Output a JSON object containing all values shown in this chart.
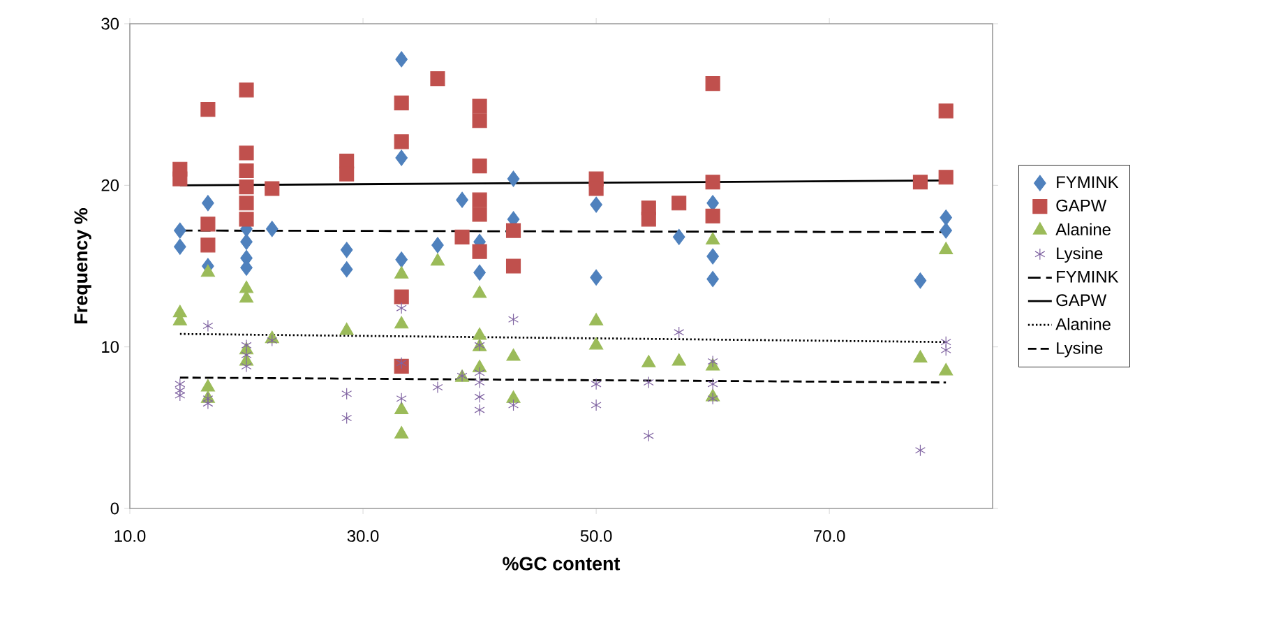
{
  "chart_data": {
    "type": "scatter",
    "xlabel": "%GC content",
    "ylabel": "Frequency %",
    "xlim": [
      10,
      84
    ],
    "ylim": [
      0,
      30
    ],
    "xticks": [
      {
        "value": 10,
        "label": "10.0"
      },
      {
        "value": 30,
        "label": "30.0"
      },
      {
        "value": 50,
        "label": "50.0"
      },
      {
        "value": 70,
        "label": "70.0"
      }
    ],
    "yticks": [
      0,
      10,
      20,
      30
    ],
    "grid": false,
    "legend": "right",
    "series": [
      {
        "name": "FYMINK",
        "marker": "diamond",
        "color": "#4f81bd",
        "x": [
          14.3,
          14.3,
          16.7,
          16.7,
          20,
          20,
          20,
          20,
          22.2,
          28.6,
          28.6,
          33.3,
          33.3,
          33.3,
          36.4,
          38.5,
          40,
          40,
          42.9,
          42.9,
          50,
          50,
          57.1,
          60,
          60,
          60,
          77.8,
          80,
          80
        ],
        "values": [
          17.2,
          16.2,
          18.9,
          15.0,
          17.3,
          16.5,
          15.5,
          14.9,
          17.3,
          16.0,
          14.8,
          27.8,
          21.7,
          15.4,
          16.3,
          19.1,
          16.5,
          14.6,
          20.4,
          17.9,
          18.8,
          14.3,
          16.8,
          18.9,
          15.6,
          14.2,
          14.1,
          18.0,
          17.2
        ]
      },
      {
        "name": "GAPW",
        "marker": "square",
        "color": "#c0504d",
        "x": [
          14.3,
          14.3,
          16.7,
          16.7,
          16.7,
          20,
          20,
          20,
          20,
          20,
          20,
          22.2,
          28.6,
          28.6,
          33.3,
          33.3,
          33.3,
          33.3,
          36.4,
          38.5,
          40,
          40,
          40,
          40,
          40,
          40,
          42.9,
          42.9,
          50,
          50,
          54.5,
          54.5,
          57.1,
          60,
          60,
          60,
          77.8,
          80,
          80
        ],
        "values": [
          21.0,
          20.4,
          24.7,
          17.6,
          16.3,
          25.9,
          22.0,
          20.9,
          19.9,
          18.9,
          17.9,
          19.8,
          21.5,
          20.7,
          25.1,
          22.7,
          13.1,
          8.8,
          26.6,
          16.8,
          24.9,
          24.0,
          21.2,
          19.1,
          18.2,
          15.9,
          17.2,
          15.0,
          20.4,
          19.8,
          18.6,
          17.9,
          18.9,
          26.3,
          20.2,
          18.1,
          20.2,
          24.6,
          20.5
        ]
      },
      {
        "name": "Alanine",
        "marker": "triangle",
        "color": "#9bbb59",
        "x": [
          14.3,
          14.3,
          16.7,
          16.7,
          16.7,
          20,
          20,
          20,
          20,
          22.2,
          28.6,
          33.3,
          33.3,
          33.3,
          33.3,
          36.4,
          38.5,
          40,
          40,
          40,
          40,
          42.9,
          42.9,
          50,
          50,
          54.5,
          57.1,
          60,
          60,
          60,
          77.8,
          80,
          80
        ],
        "values": [
          12.1,
          11.6,
          14.6,
          7.5,
          6.8,
          13.6,
          13.0,
          9.8,
          9.1,
          10.5,
          11.0,
          14.5,
          11.4,
          6.1,
          4.6,
          15.3,
          8.1,
          13.3,
          10.7,
          10.0,
          8.7,
          9.4,
          6.8,
          11.6,
          10.1,
          9.0,
          9.1,
          16.6,
          8.8,
          6.9,
          9.3,
          16.0,
          8.5
        ]
      },
      {
        "name": "Lysine",
        "marker": "cross",
        "color": "#8064a2",
        "x": [
          14.3,
          14.3,
          14.3,
          16.7,
          16.7,
          16.7,
          20,
          20,
          20,
          22.2,
          28.6,
          28.6,
          33.3,
          33.3,
          33.3,
          36.4,
          38.5,
          40,
          40,
          40,
          40,
          40,
          42.9,
          42.9,
          50,
          50,
          54.5,
          54.5,
          57.1,
          60,
          60,
          60,
          77.8,
          80,
          80
        ],
        "values": [
          7.7,
          7.3,
          7.0,
          11.3,
          6.8,
          6.5,
          10.1,
          9.5,
          8.8,
          10.4,
          7.1,
          5.6,
          12.4,
          9.0,
          6.8,
          7.5,
          8.2,
          10.1,
          8.4,
          7.8,
          6.9,
          6.1,
          11.7,
          6.4,
          7.7,
          6.4,
          7.8,
          4.5,
          10.9,
          9.1,
          7.7,
          6.8,
          3.6,
          10.3,
          9.8
        ]
      },
      {
        "name": "FYMINK",
        "type": "line",
        "line_style": "longdashed",
        "color": "#000000",
        "x": [
          14.3,
          80
        ],
        "values": [
          17.2,
          17.1
        ]
      },
      {
        "name": "GAPW",
        "type": "line",
        "line_style": "solid",
        "color": "#000000",
        "x": [
          14.3,
          80
        ],
        "values": [
          20.0,
          20.3
        ]
      },
      {
        "name": "Alanine",
        "type": "line",
        "line_style": "dotted",
        "color": "#000000",
        "x": [
          14.3,
          80
        ],
        "values": [
          10.8,
          10.3
        ]
      },
      {
        "name": "Lysine",
        "type": "line",
        "line_style": "dashed",
        "color": "#000000",
        "x": [
          14.3,
          80
        ],
        "values": [
          8.1,
          7.8
        ]
      }
    ]
  }
}
